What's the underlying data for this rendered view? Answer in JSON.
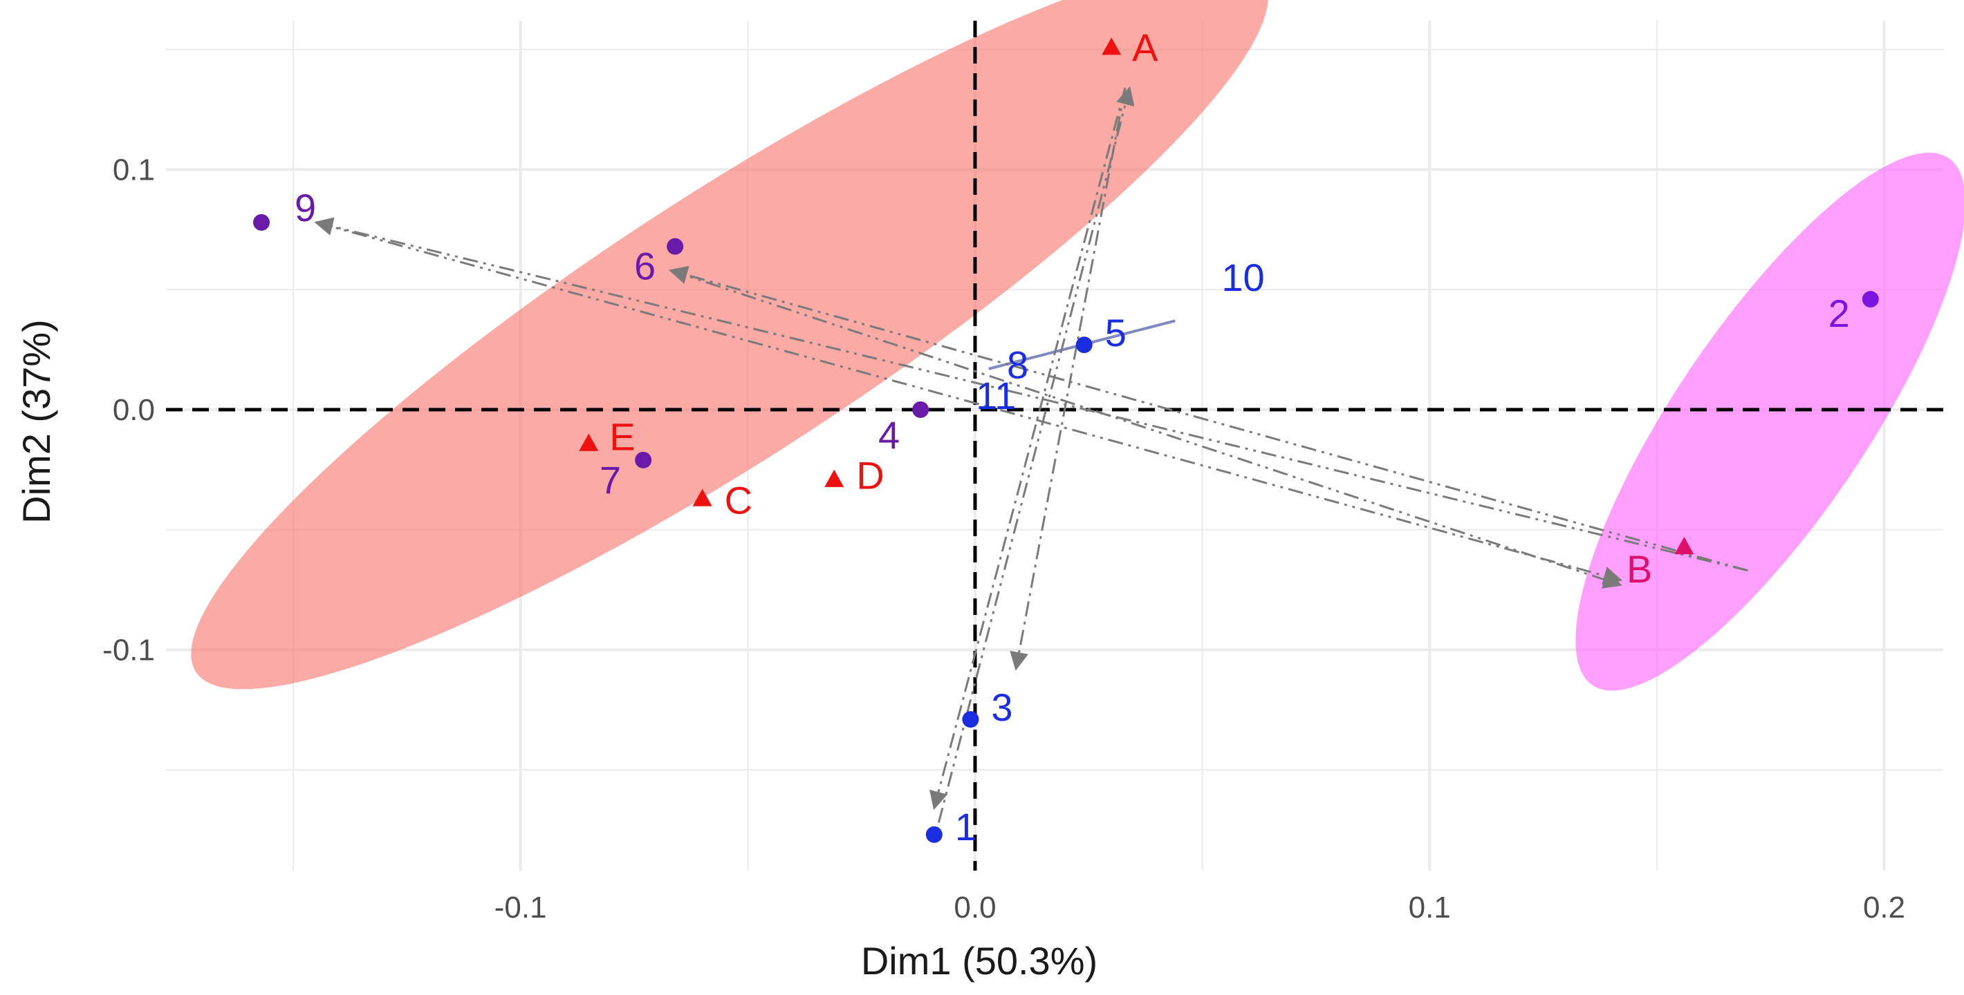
{
  "chart_data": {
    "type": "scatter",
    "xlabel": "Dim1 (50.3%)",
    "ylabel": "Dim2 (37%)",
    "xlim": [
      -0.178,
      0.213
    ],
    "ylim": [
      -0.192,
      0.162
    ],
    "x_ticks": [
      -0.1,
      0.0,
      0.1,
      0.2
    ],
    "y_ticks": [
      -0.1,
      0.0,
      0.1
    ],
    "x_tick_labels": [
      "-0.1",
      "0.0",
      "0.1",
      "0.2"
    ],
    "y_tick_labels": [
      "-0.1",
      "0.0",
      "0.1"
    ],
    "grid": true,
    "reference_lines": [
      "x = 0",
      "y = 0"
    ],
    "series": [
      {
        "name": "triangles",
        "marker": "triangle",
        "points": [
          {
            "label": "A",
            "x": 0.03,
            "y": 0.151,
            "color": "#ee1111"
          },
          {
            "label": "B",
            "x": 0.156,
            "y": -0.057,
            "color": "#e0106a"
          },
          {
            "label": "C",
            "x": -0.06,
            "y": -0.037,
            "color": "#ee1111"
          },
          {
            "label": "D",
            "x": -0.031,
            "y": -0.029,
            "color": "#ee1111"
          },
          {
            "label": "E",
            "x": -0.085,
            "y": -0.014,
            "color": "#ee1111"
          }
        ]
      },
      {
        "name": "circles",
        "marker": "circle",
        "points": [
          {
            "label": "1",
            "x": -0.009,
            "y": -0.177,
            "color": "#1a2ee0"
          },
          {
            "label": "2",
            "x": 0.197,
            "y": 0.046,
            "color": "#7a14e0"
          },
          {
            "label": "3",
            "x": -0.001,
            "y": -0.129,
            "color": "#1a2ee0"
          },
          {
            "label": "4",
            "x": -0.012,
            "y": 0.0,
            "color": "#6a1aa8"
          },
          {
            "label": "5",
            "x": 0.024,
            "y": 0.027,
            "color": "#1a2ee0"
          },
          {
            "label": "6",
            "x": -0.066,
            "y": 0.068,
            "color": "#6a1aa8"
          },
          {
            "label": "7",
            "x": -0.073,
            "y": -0.021,
            "color": "#6a1aa8"
          },
          {
            "label": "9",
            "x": -0.157,
            "y": 0.078,
            "color": "#6a1aa8"
          }
        ]
      },
      {
        "name": "unmarked",
        "marker": "none",
        "points": [
          {
            "label": "8",
            "x": 0.016,
            "y": 0.02,
            "color": "#1a2ee0"
          },
          {
            "label": "10",
            "x": 0.046,
            "y": 0.046,
            "color": "#1a2ee0"
          },
          {
            "label": "11",
            "x": 0.002,
            "y": 0.002,
            "color": "#1a2ee0"
          }
        ]
      }
    ],
    "ellipses": [
      {
        "group": "red",
        "cx": -0.054,
        "cy": 0.035,
        "rx": 0.14,
        "ry": 0.055,
        "angle_deg": -33,
        "color": "#f8766d"
      },
      {
        "group": "magenta",
        "cx": 0.175,
        "cy": -0.005,
        "rx": 0.07,
        "ry": 0.04,
        "angle_deg": 124,
        "color": "#ff66ff"
      }
    ],
    "segments": [
      {
        "name": "segment-8-10",
        "x1": 0.003,
        "y1": 0.017,
        "x2": 0.044,
        "y2": 0.037,
        "color": "#8088c0"
      }
    ],
    "arrows": [
      {
        "name": "arrow-to-9",
        "x1": 0.17,
        "y1": -0.067,
        "x2": -0.145,
        "y2": 0.078,
        "style": "dash-dot-dot"
      },
      {
        "name": "arrow-to-6",
        "x1": 0.17,
        "y1": -0.067,
        "x2": -0.067,
        "y2": 0.058,
        "style": "dash-dot-dot"
      },
      {
        "name": "arrow-to-B-1",
        "x1": -0.145,
        "y1": 0.078,
        "x2": 0.142,
        "y2": -0.071,
        "style": "dash-dot-dot"
      },
      {
        "name": "arrow-to-B-2",
        "x1": -0.067,
        "y1": 0.058,
        "x2": 0.142,
        "y2": -0.073,
        "style": "dash-dot-dot"
      },
      {
        "name": "arrow-to-A",
        "x1": -0.008,
        "y1": -0.172,
        "x2": 0.034,
        "y2": 0.134,
        "style": "dash-dot-dot"
      },
      {
        "name": "arrow-to-3",
        "x1": 0.033,
        "y1": 0.134,
        "x2": 0.009,
        "y2": -0.108,
        "style": "dash-dot"
      },
      {
        "name": "arrow-to-1",
        "x1": 0.033,
        "y1": 0.134,
        "x2": -0.009,
        "y2": -0.166,
        "style": "dash-dot"
      }
    ]
  }
}
